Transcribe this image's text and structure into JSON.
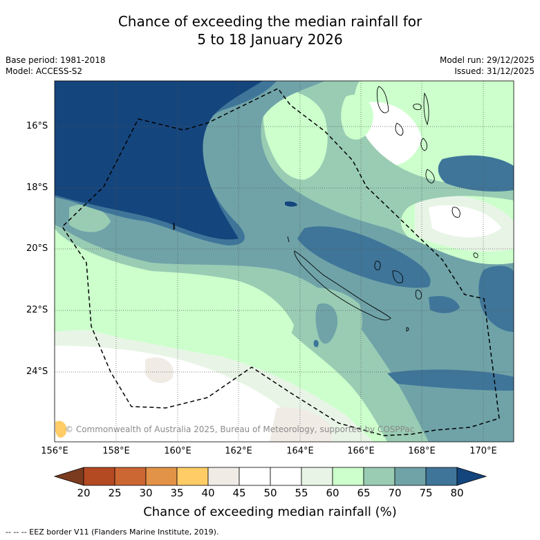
{
  "title": {
    "line1": "Chance of exceeding the median rainfall for",
    "line2": "5 to 18 January 2026"
  },
  "meta_left": {
    "base_period": "Base period: 1981-2018",
    "model": "Model: ACCESS-S2"
  },
  "meta_right": {
    "model_run": "Model run: 29/12/2025",
    "issued": "Issued: 31/12/2025"
  },
  "axes": {
    "lat_labels": [
      "16°S",
      "18°S",
      "20°S",
      "22°S",
      "24°S"
    ],
    "lon_labels": [
      "156°E",
      "158°E",
      "160°E",
      "162°E",
      "164°E",
      "166°E",
      "168°E",
      "170°E"
    ]
  },
  "copyright": "© Commonwealth of Australia 2025, Bureau of Meteorology, supported by COSPPac",
  "colorbar": {
    "title": "Chance of exceeding median rainfall (%)",
    "ticks": [
      "20",
      "25",
      "30",
      "35",
      "40",
      "45",
      "50",
      "55",
      "60",
      "65",
      "70",
      "75",
      "80"
    ],
    "colors": [
      "#7a3b1f",
      "#b34a22",
      "#cc6633",
      "#e29347",
      "#ffcc66",
      "#f0ebe5",
      "#ffffff",
      "#ffffff",
      "#e8f5e6",
      "#ccffcc",
      "#99ccb3",
      "#6fa3a8",
      "#3f7599",
      "#15457d"
    ]
  },
  "footnote": "-- -- -- EEZ border V11 (Flanders Marine Institute, 2019)."
}
